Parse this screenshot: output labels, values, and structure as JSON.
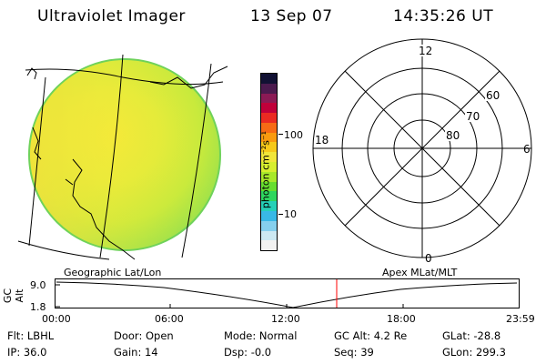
{
  "header": {
    "instrument": "Ultraviolet Imager",
    "date": "13 Sep 07",
    "time": "14:35:26 UT"
  },
  "colorbar": {
    "unit_label": "photon cm⁻²s⁻¹",
    "ticks": [
      "100",
      "10"
    ],
    "colors": [
      "#111133",
      "#4b1a4e",
      "#8b1a55",
      "#c0003a",
      "#ea2a22",
      "#f76a15",
      "#f99a0f",
      "#f6c91a",
      "#f1e63a",
      "#d7ee2f",
      "#a8e92a",
      "#67de2f",
      "#2fd65f",
      "#26d0b8",
      "#39b8e6",
      "#86d0ee",
      "#cde9f3",
      "#f2f2f2"
    ]
  },
  "polar_grid": {
    "mlt_labels": {
      "top": "12",
      "left": "18",
      "right": "6",
      "bottom": "0"
    },
    "lat_labels": [
      "60",
      "70",
      "80"
    ]
  },
  "panel_labels": {
    "left": "Geographic Lat/Lon",
    "right": "Apex MLat/MLT"
  },
  "altitude_plot": {
    "ylabel": "GC Alt",
    "ytick_top": "9.0",
    "ytick_bottom": "1.8",
    "time_ticks": [
      "00:00",
      "06:00",
      "12:00",
      "18:00",
      "23:59"
    ],
    "current_marker_color": "#ff0000"
  },
  "footer": {
    "row1": [
      {
        "label": "Flt:",
        "value": "LBHL"
      },
      {
        "label": "Door:",
        "value": "Open"
      },
      {
        "label": "Mode:",
        "value": "Normal"
      },
      {
        "label": "GC Alt:",
        "value": "4.2 Re"
      },
      {
        "label": "GLat:",
        "value": "-28.8"
      }
    ],
    "row2": [
      {
        "label": "IP:",
        "value": "36.0"
      },
      {
        "label": "Gain:",
        "value": "14"
      },
      {
        "label": "Dsp:",
        "value": "-0.0"
      },
      {
        "label": "Seq:",
        "value": "39"
      },
      {
        "label": "GLon:",
        "value": "299.3"
      }
    ]
  },
  "colors": {
    "disk_main": "#d8ec3c",
    "disk_dim": "#f2e63a",
    "disk_edge": "#7ad850",
    "marker": "#ff0000"
  }
}
